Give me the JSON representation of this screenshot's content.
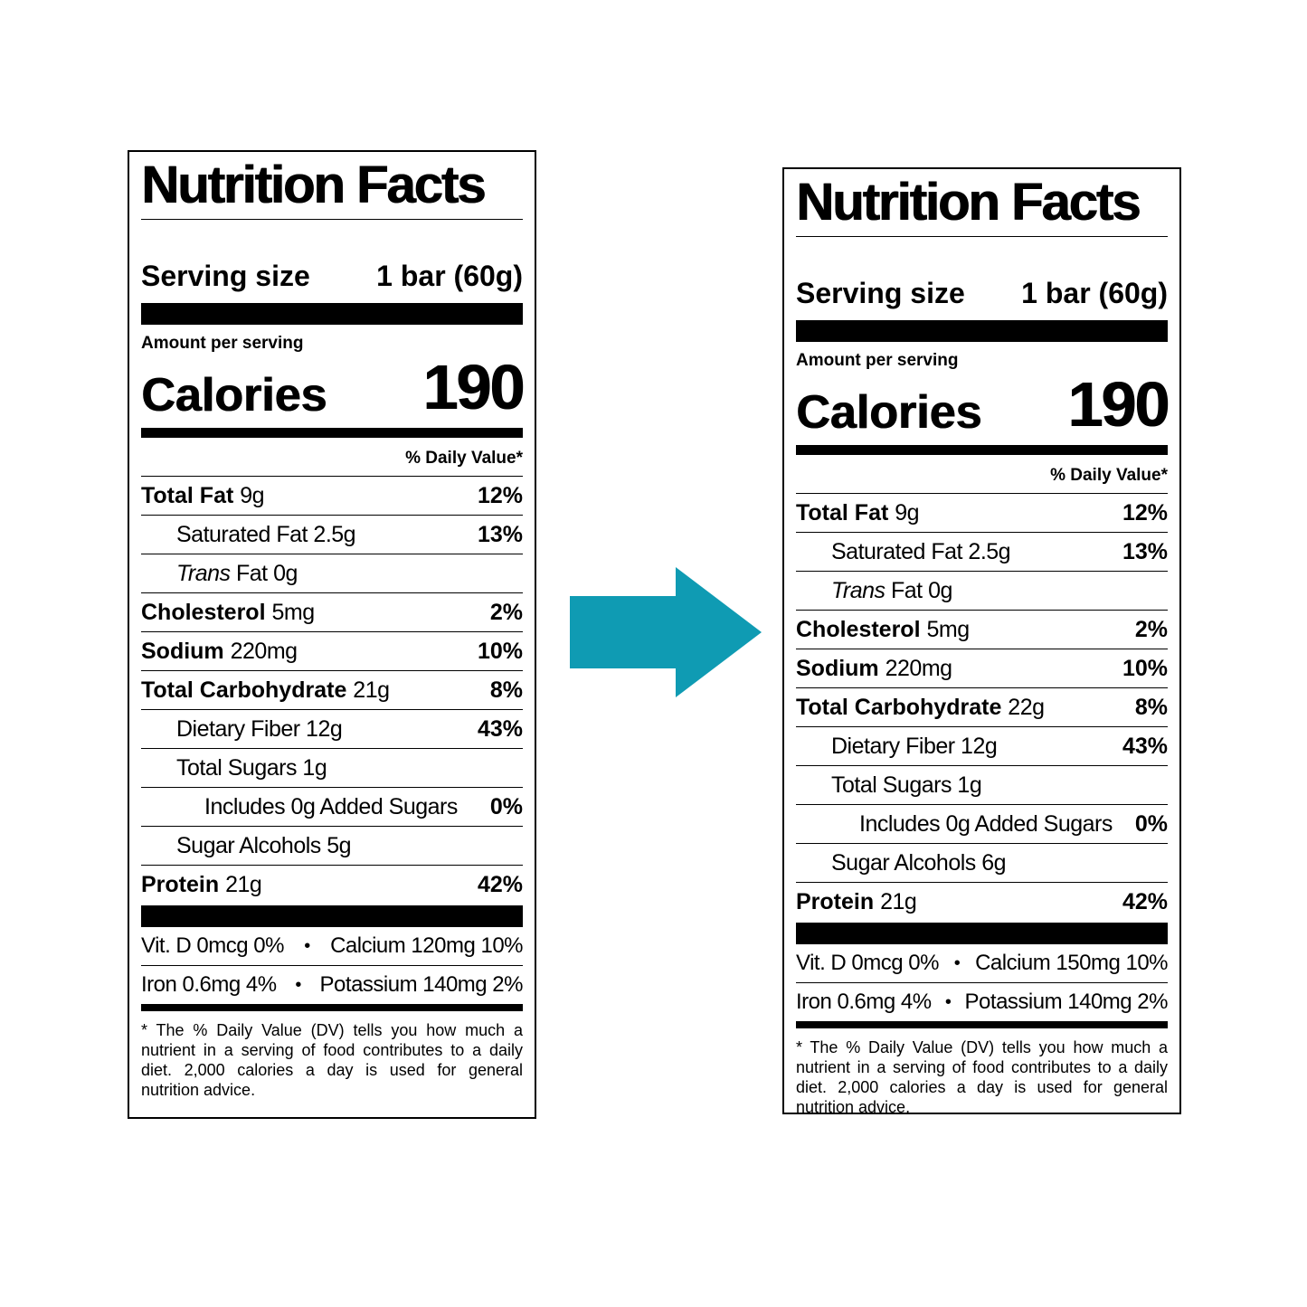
{
  "labels": {
    "before": {
      "title": "Nutrition Facts",
      "serving_label": "Serving size",
      "serving_value": "1 bar (60g)",
      "amount_per_serving": "Amount per serving",
      "calories_label": "Calories",
      "calories_value": "190",
      "daily_value_header": "% Daily Value*",
      "total_fat_label": "Total Fat",
      "total_fat_amount": "9g",
      "total_fat_dv": "12%",
      "sat_fat_label": "Saturated Fat 2.5g",
      "sat_fat_dv": "13%",
      "trans_fat_italic": "Trans",
      "trans_fat_rest": " Fat 0g",
      "cholesterol_label": "Cholesterol",
      "cholesterol_amount": "5mg",
      "cholesterol_dv": "2%",
      "sodium_label": "Sodium",
      "sodium_amount": "220mg",
      "sodium_dv": "10%",
      "carb_label": "Total Carbohydrate",
      "carb_amount": "21g",
      "carb_dv": "8%",
      "fiber_label": "Dietary Fiber 12g",
      "fiber_dv": "43%",
      "sugars_label": "Total Sugars 1g",
      "added_sugars_label": "Includes 0g Added Sugars",
      "added_sugars_dv": "0%",
      "sugar_alcohols_label": "Sugar Alcohols 5g",
      "protein_label": "Protein",
      "protein_amount": "21g",
      "protein_dv": "42%",
      "vitd": "Vit. D 0mcg 0%",
      "calcium": "Calcium 120mg 10%",
      "iron": "Iron 0.6mg 4%",
      "potassium": "Potassium 140mg 2%",
      "bullet": "•",
      "footnote": "* The % Daily Value (DV) tells you how much a nutrient in a serving of food contributes to a daily diet. 2,000 calories a day is used for general nutrition advice."
    },
    "after": {
      "title": "Nutrition Facts",
      "serving_label": "Serving size",
      "serving_value": "1 bar (60g)",
      "amount_per_serving": "Amount per serving",
      "calories_label": "Calories",
      "calories_value": "190",
      "daily_value_header": "% Daily Value*",
      "total_fat_label": "Total Fat",
      "total_fat_amount": "9g",
      "total_fat_dv": "12%",
      "sat_fat_label": "Saturated Fat 2.5g",
      "sat_fat_dv": "13%",
      "trans_fat_italic": "Trans",
      "trans_fat_rest": " Fat 0g",
      "cholesterol_label": "Cholesterol",
      "cholesterol_amount": "5mg",
      "cholesterol_dv": "2%",
      "sodium_label": "Sodium",
      "sodium_amount": "220mg",
      "sodium_dv": "10%",
      "carb_label": "Total Carbohydrate",
      "carb_amount": "22g",
      "carb_dv": "8%",
      "fiber_label": "Dietary Fiber 12g",
      "fiber_dv": "43%",
      "sugars_label": "Total Sugars 1g",
      "added_sugars_label": "Includes 0g Added Sugars",
      "added_sugars_dv": "0%",
      "sugar_alcohols_label": "Sugar Alcohols 6g",
      "protein_label": "Protein",
      "protein_amount": "21g",
      "protein_dv": "42%",
      "vitd": "Vit. D 0mcg 0%",
      "calcium": "Calcium 150mg 10%",
      "iron": "Iron 0.6mg 4%",
      "potassium": "Potassium 140mg 2%",
      "bullet": "•",
      "footnote": "* The % Daily Value (DV) tells you how much a nutrient in a serving of food contributes to a daily diet. 2,000 calories a day is used for general nutrition advice."
    }
  },
  "colors": {
    "arrow": "#0f9bb3",
    "text": "#000000",
    "background": "#ffffff"
  },
  "icons": {
    "arrow": "right-arrow-icon"
  }
}
